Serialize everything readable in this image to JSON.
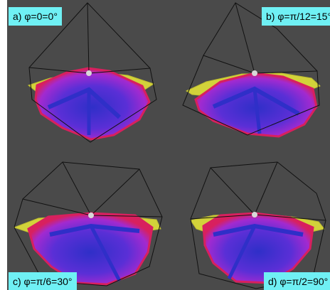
{
  "labels": {
    "a": "a) φ=0=0°",
    "b": "b) φ=π/12=15°",
    "c": "c) φ=π/6=30°",
    "d": "d) φ=π/2=90°"
  },
  "colors": {
    "background": "#4a4a4a",
    "label_background": "#6ff0f4",
    "disc": "#d2d23a",
    "rim": "#d8205e",
    "surface": "#8a2ad8",
    "core": "#2f2fc8",
    "wireframe": "#111111"
  }
}
